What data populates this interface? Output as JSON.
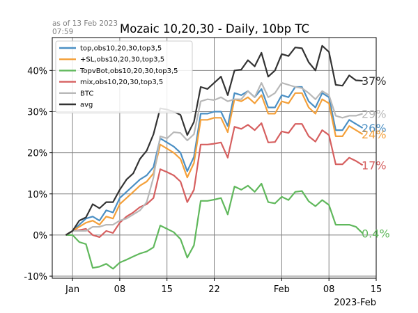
{
  "chart_data": {
    "type": "line",
    "title": "Mozaic 10,20,30 - Daily, 10bp TC",
    "note_line1": "as of 13 Feb 2023",
    "note_line2": "07:59",
    "x_offset_label": "2023-Feb",
    "x": [
      "2022-12-31",
      "2023-01-01",
      "2023-01-02",
      "2023-01-03",
      "2023-01-04",
      "2023-01-05",
      "2023-01-06",
      "2023-01-07",
      "2023-01-08",
      "2023-01-09",
      "2023-01-10",
      "2023-01-11",
      "2023-01-12",
      "2023-01-13",
      "2023-01-14",
      "2023-01-15",
      "2023-01-16",
      "2023-01-17",
      "2023-01-18",
      "2023-01-19",
      "2023-01-20",
      "2023-01-21",
      "2023-01-22",
      "2023-01-23",
      "2023-01-24",
      "2023-01-25",
      "2023-01-26",
      "2023-01-27",
      "2023-01-28",
      "2023-01-29",
      "2023-01-30",
      "2023-01-31",
      "2023-02-01",
      "2023-02-02",
      "2023-02-03",
      "2023-02-04",
      "2023-02-05",
      "2023-02-06",
      "2023-02-07",
      "2023-02-08",
      "2023-02-09",
      "2023-02-10",
      "2023-02-11",
      "2023-02-12",
      "2023-02-13"
    ],
    "x_ticks": [
      {
        "date": "2023-01-01",
        "label": "Jan"
      },
      {
        "date": "2023-01-08",
        "label": "08"
      },
      {
        "date": "2023-01-15",
        "label": "15"
      },
      {
        "date": "2023-01-22",
        "label": "22"
      },
      {
        "date": "2023-02-01",
        "label": "Feb"
      },
      {
        "date": "2023-02-08",
        "label": "08"
      },
      {
        "date": "2023-02-15",
        "label": "15"
      }
    ],
    "xlim": [
      "2022-12-29",
      "2023-02-15"
    ],
    "ylim": [
      -0.105,
      0.48
    ],
    "y_ticks": [
      -0.1,
      0,
      0.1,
      0.2,
      0.3,
      0.4
    ],
    "y_tick_labels": [
      "-10%",
      "0%",
      "10%",
      "20%",
      "30%",
      "40%"
    ],
    "grid": true,
    "legend_position": "top-left",
    "series": [
      {
        "name": "top,obs10,20,30,top3,5",
        "color": "#4a8fc4",
        "end_label": "26%",
        "values": [
          0,
          0.01,
          0.025,
          0.04,
          0.045,
          0.035,
          0.06,
          0.055,
          0.09,
          0.105,
          0.12,
          0.135,
          0.145,
          0.165,
          0.235,
          0.225,
          0.215,
          0.2,
          0.155,
          0.19,
          0.295,
          0.295,
          0.3,
          0.3,
          0.265,
          0.345,
          0.34,
          0.35,
          0.335,
          0.355,
          0.31,
          0.31,
          0.34,
          0.335,
          0.36,
          0.36,
          0.325,
          0.31,
          0.345,
          0.335,
          0.255,
          0.255,
          0.28,
          0.27,
          0.26
        ]
      },
      {
        "name": "+SL,obs10,20,30,top3,5",
        "color": "#f4a03a",
        "end_label": "24%",
        "values": [
          0,
          0.01,
          0.02,
          0.03,
          0.035,
          0.025,
          0.045,
          0.04,
          0.075,
          0.09,
          0.105,
          0.12,
          0.13,
          0.15,
          0.22,
          0.21,
          0.2,
          0.185,
          0.14,
          0.175,
          0.28,
          0.28,
          0.285,
          0.285,
          0.25,
          0.33,
          0.325,
          0.335,
          0.32,
          0.34,
          0.295,
          0.295,
          0.325,
          0.32,
          0.345,
          0.345,
          0.31,
          0.295,
          0.33,
          0.32,
          0.24,
          0.24,
          0.265,
          0.255,
          0.245
        ]
      },
      {
        "name": "TopvBot,obs10,20,30,top3,5",
        "color": "#60b85c",
        "end_label": "0.4%",
        "values": [
          0,
          0,
          -0.017,
          -0.022,
          -0.08,
          -0.077,
          -0.07,
          -0.082,
          -0.067,
          -0.06,
          -0.052,
          -0.045,
          -0.04,
          -0.03,
          0.023,
          0.015,
          0.007,
          -0.01,
          -0.055,
          -0.025,
          0.083,
          0.083,
          0.086,
          0.09,
          0.05,
          0.118,
          0.11,
          0.12,
          0.105,
          0.125,
          0.08,
          0.077,
          0.093,
          0.085,
          0.105,
          0.107,
          0.082,
          0.07,
          0.085,
          0.073,
          0.025,
          0.025,
          0.025,
          0.02,
          0.004
        ]
      },
      {
        "name": "mix,obs10,20,30,top3,5",
        "color": "#d65f5f",
        "end_label": "17%",
        "values": [
          0,
          0.01,
          0.012,
          0.015,
          0,
          -0.005,
          0.01,
          0.005,
          0.03,
          0.045,
          0.055,
          0.068,
          0.075,
          0.09,
          0.16,
          0.153,
          0.145,
          0.13,
          0.08,
          0.11,
          0.22,
          0.22,
          0.222,
          0.225,
          0.188,
          0.263,
          0.258,
          0.268,
          0.255,
          0.272,
          0.225,
          0.226,
          0.252,
          0.248,
          0.27,
          0.27,
          0.24,
          0.227,
          0.255,
          0.243,
          0.172,
          0.172,
          0.188,
          0.18,
          0.17
        ]
      },
      {
        "name": "BTC",
        "color": "#b8b8b8",
        "end_label": "29%",
        "values": [
          0,
          0.01,
          0.01,
          0.01,
          0.02,
          0.02,
          0.025,
          0.025,
          0.035,
          0.04,
          0.05,
          0.06,
          0.08,
          0.14,
          0.24,
          0.235,
          0.25,
          0.248,
          0.23,
          0.245,
          0.325,
          0.33,
          0.328,
          0.335,
          0.325,
          0.33,
          0.33,
          0.35,
          0.335,
          0.37,
          0.335,
          0.345,
          0.37,
          0.365,
          0.36,
          0.357,
          0.345,
          0.33,
          0.35,
          0.34,
          0.29,
          0.285,
          0.29,
          0.29,
          0.295
        ]
      },
      {
        "name": "avg",
        "color": "#333333",
        "end_label": "37%",
        "values": [
          0,
          0.01,
          0.035,
          0.043,
          0.075,
          0.065,
          0.08,
          0.08,
          0.11,
          0.135,
          0.15,
          0.185,
          0.205,
          0.245,
          0.308,
          0.305,
          0.3,
          0.292,
          0.243,
          0.275,
          0.36,
          0.355,
          0.37,
          0.385,
          0.34,
          0.4,
          0.402,
          0.425,
          0.41,
          0.443,
          0.385,
          0.4,
          0.44,
          0.435,
          0.456,
          0.454,
          0.42,
          0.4,
          0.46,
          0.445,
          0.365,
          0.363,
          0.388,
          0.376,
          0.375
        ]
      }
    ]
  }
}
